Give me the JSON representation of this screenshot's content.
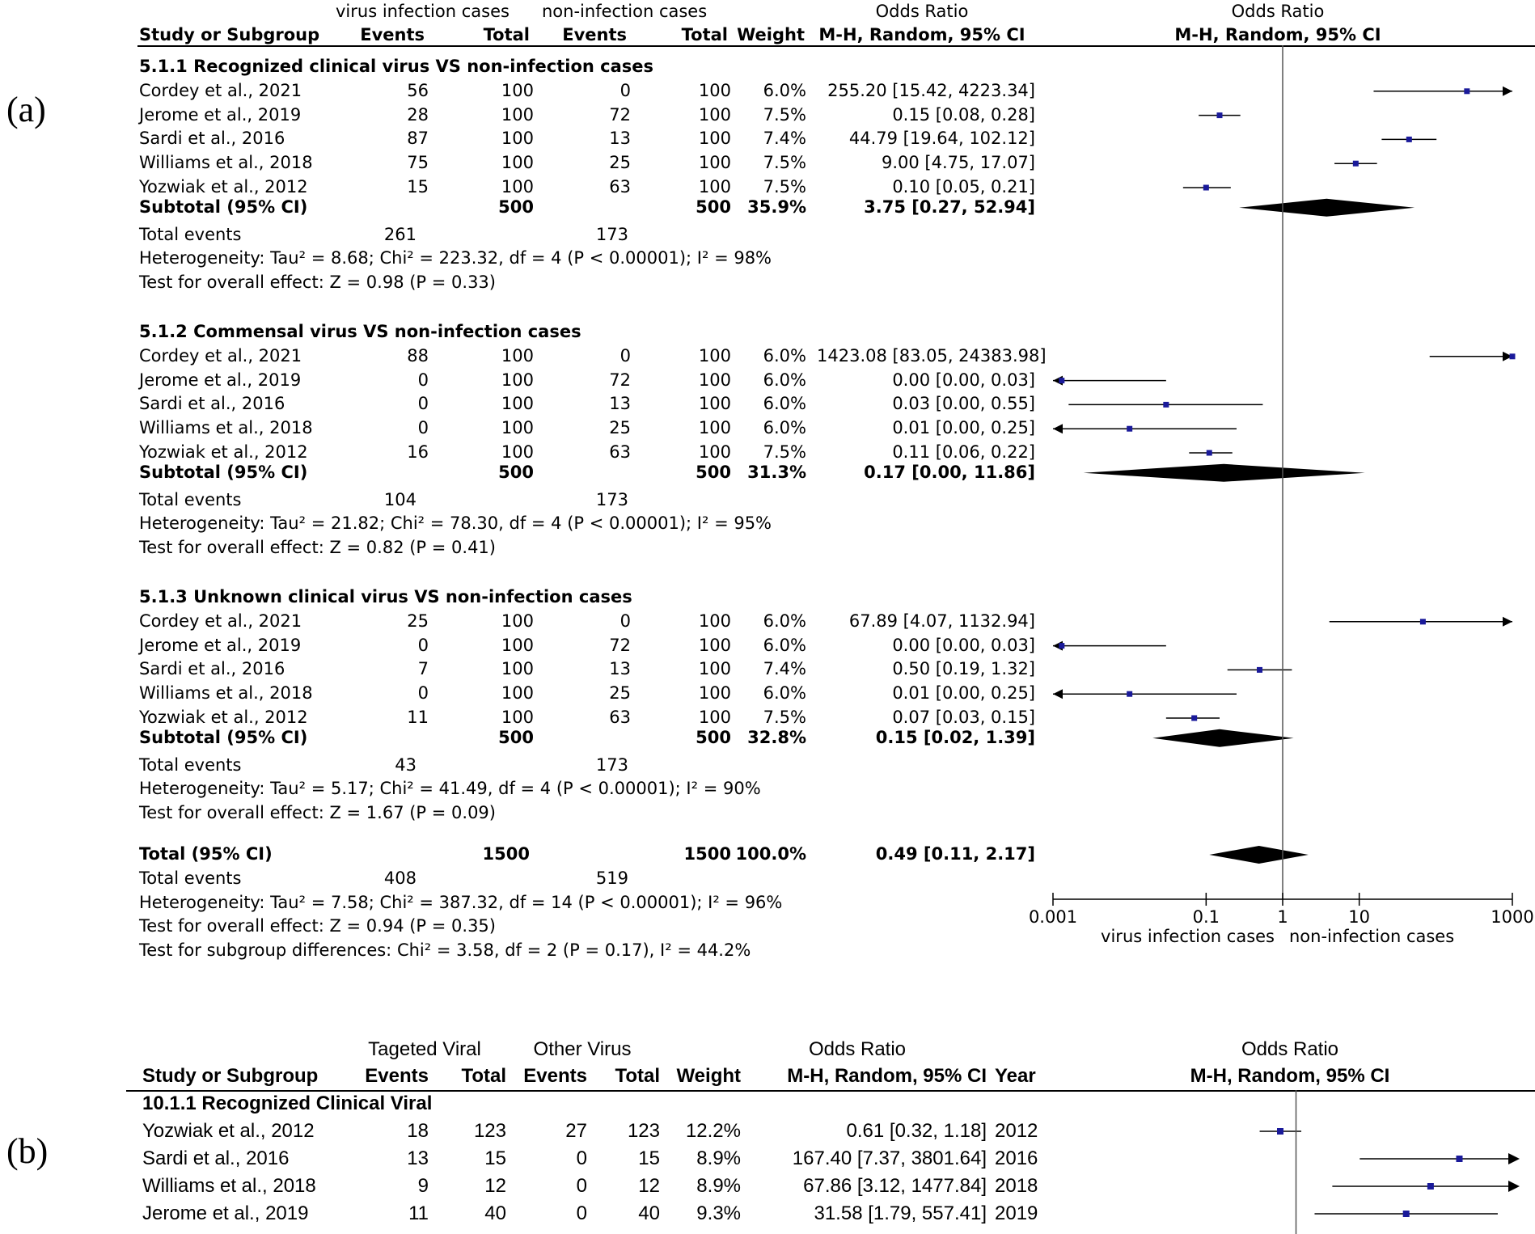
{
  "chart_data": [
    {
      "type": "forest",
      "panel": "(a)",
      "header": {
        "group1": "virus infection cases",
        "group2": "non-infection cases",
        "study_col": "Study or Subgroup",
        "events": "Events",
        "total": "Total",
        "weight": "Weight",
        "or_title": "Odds Ratio",
        "or_method": "M-H, Random, 95% CI",
        "plot_title": "Odds Ratio",
        "plot_method": "M-H, Random, 95% CI"
      },
      "subgroups": [
        {
          "title": "5.1.1 Recognized clinical virus VS non-infection cases",
          "studies": [
            {
              "study": "Cordey et al., 2021",
              "e1": "56",
              "n1": "100",
              "e2": "0",
              "n2": "100",
              "weight": "6.0%",
              "ci_text": "255.20 [15.42, 4223.34]",
              "or": 255.2,
              "lo": 15.42,
              "hi": 4223.34
            },
            {
              "study": "Jerome et al., 2019",
              "e1": "28",
              "n1": "100",
              "e2": "72",
              "n2": "100",
              "weight": "7.5%",
              "ci_text": "0.15 [0.08, 0.28]",
              "or": 0.15,
              "lo": 0.08,
              "hi": 0.28
            },
            {
              "study": "Sardi et al., 2016",
              "e1": "87",
              "n1": "100",
              "e2": "13",
              "n2": "100",
              "weight": "7.4%",
              "ci_text": "44.79 [19.64, 102.12]",
              "or": 44.79,
              "lo": 19.64,
              "hi": 102.12
            },
            {
              "study": "Williams et al., 2018",
              "e1": "75",
              "n1": "100",
              "e2": "25",
              "n2": "100",
              "weight": "7.5%",
              "ci_text": "9.00 [4.75, 17.07]",
              "or": 9.0,
              "lo": 4.75,
              "hi": 17.07
            },
            {
              "study": "Yozwiak et al., 2012",
              "e1": "15",
              "n1": "100",
              "e2": "63",
              "n2": "100",
              "weight": "7.5%",
              "ci_text": "0.10 [0.05, 0.21]",
              "or": 0.1,
              "lo": 0.05,
              "hi": 0.21
            }
          ],
          "subtotal": {
            "label": "Subtotal (95% CI)",
            "n1": "500",
            "n2": "500",
            "weight": "35.9%",
            "ci_text": "3.75 [0.27, 52.94]",
            "or": 3.75,
            "lo": 0.27,
            "hi": 52.94
          },
          "total_events": {
            "label": "Total events",
            "e1": "261",
            "e2": "173"
          },
          "heterogeneity": "Heterogeneity: Tau² = 8.68; Chi² = 223.32, df = 4 (P < 0.00001); I² = 98%",
          "overall": "Test for overall effect: Z = 0.98 (P = 0.33)"
        },
        {
          "title": "5.1.2 Commensal virus VS non-infection cases",
          "studies": [
            {
              "study": "Cordey et al., 2021",
              "e1": "88",
              "n1": "100",
              "e2": "0",
              "n2": "100",
              "weight": "6.0%",
              "ci_text": "1423.08 [83.05, 24383.98]",
              "or": 1423.08,
              "lo": 83.05,
              "hi": 24383.98
            },
            {
              "study": "Jerome et al., 2019",
              "e1": "0",
              "n1": "100",
              "e2": "72",
              "n2": "100",
              "weight": "6.0%",
              "ci_text": "0.00 [0.00, 0.03]",
              "or": 0.0013,
              "lo": 5e-05,
              "hi": 0.03
            },
            {
              "study": "Sardi et al., 2016",
              "e1": "0",
              "n1": "100",
              "e2": "13",
              "n2": "100",
              "weight": "6.0%",
              "ci_text": "0.03 [0.00, 0.55]",
              "or": 0.03,
              "lo": 0.0016,
              "hi": 0.55
            },
            {
              "study": "Williams et al., 2018",
              "e1": "0",
              "n1": "100",
              "e2": "25",
              "n2": "100",
              "weight": "6.0%",
              "ci_text": "0.01 [0.00, 0.25]",
              "or": 0.01,
              "lo": 0.0001,
              "hi": 0.25
            },
            {
              "study": "Yozwiak et al., 2012",
              "e1": "16",
              "n1": "100",
              "e2": "63",
              "n2": "100",
              "weight": "7.5%",
              "ci_text": "0.11 [0.06, 0.22]",
              "or": 0.11,
              "lo": 0.06,
              "hi": 0.22
            }
          ],
          "subtotal": {
            "label": "Subtotal (95% CI)",
            "n1": "500",
            "n2": "500",
            "weight": "31.3%",
            "ci_text": "0.17 [0.00, 11.86]",
            "or": 0.17,
            "lo": 0.0025,
            "hi": 11.86
          },
          "total_events": {
            "label": "Total events",
            "e1": "104",
            "e2": "173"
          },
          "heterogeneity": "Heterogeneity: Tau² = 21.82; Chi² = 78.30, df = 4 (P < 0.00001); I² = 95%",
          "overall": "Test for overall effect: Z = 0.82 (P = 0.41)"
        },
        {
          "title": "5.1.3 Unknown clinical virus VS non-infection cases",
          "studies": [
            {
              "study": "Cordey et al., 2021",
              "e1": "25",
              "n1": "100",
              "e2": "0",
              "n2": "100",
              "weight": "6.0%",
              "ci_text": "67.89 [4.07, 1132.94]",
              "or": 67.89,
              "lo": 4.07,
              "hi": 1132.94
            },
            {
              "study": "Jerome et al., 2019",
              "e1": "0",
              "n1": "100",
              "e2": "72",
              "n2": "100",
              "weight": "6.0%",
              "ci_text": "0.00 [0.00, 0.03]",
              "or": 0.0013,
              "lo": 5e-05,
              "hi": 0.03
            },
            {
              "study": "Sardi et al., 2016",
              "e1": "7",
              "n1": "100",
              "e2": "13",
              "n2": "100",
              "weight": "7.4%",
              "ci_text": "0.50 [0.19, 1.32]",
              "or": 0.5,
              "lo": 0.19,
              "hi": 1.32
            },
            {
              "study": "Williams et al., 2018",
              "e1": "0",
              "n1": "100",
              "e2": "25",
              "n2": "100",
              "weight": "6.0%",
              "ci_text": "0.01 [0.00, 0.25]",
              "or": 0.01,
              "lo": 0.0001,
              "hi": 0.25
            },
            {
              "study": "Yozwiak et al., 2012",
              "e1": "11",
              "n1": "100",
              "e2": "63",
              "n2": "100",
              "weight": "7.5%",
              "ci_text": "0.07 [0.03, 0.15]",
              "or": 0.07,
              "lo": 0.03,
              "hi": 0.15
            }
          ],
          "subtotal": {
            "label": "Subtotal (95% CI)",
            "n1": "500",
            "n2": "500",
            "weight": "32.8%",
            "ci_text": "0.15 [0.02, 1.39]",
            "or": 0.15,
            "lo": 0.02,
            "hi": 1.39
          },
          "total_events": {
            "label": "Total events",
            "e1": "43",
            "e2": "173"
          },
          "heterogeneity": "Heterogeneity: Tau² = 5.17; Chi² = 41.49, df = 4 (P < 0.00001); I² = 90%",
          "overall": "Test for overall effect: Z = 1.67 (P = 0.09)"
        }
      ],
      "total": {
        "label": "Total (95% CI)",
        "n1": "1500",
        "n2": "1500",
        "weight": "100.0%",
        "ci_text": "0.49 [0.11, 2.17]",
        "or": 0.49,
        "lo": 0.11,
        "hi": 2.17
      },
      "total_events": {
        "label": "Total events",
        "e1": "408",
        "e2": "519"
      },
      "heterogeneity": "Heterogeneity: Tau² = 7.58; Chi² = 387.32, df = 14 (P < 0.00001); I² = 96%",
      "overall": "Test for overall effect: Z = 0.94 (P = 0.35)",
      "subgroup_diff": "Test for subgroup differences: Chi² = 3.58, df = 2 (P = 0.17), I² = 44.2%",
      "axis": {
        "scale": "log",
        "xlim": [
          0.001,
          1000
        ],
        "ticks": [
          {
            "v": 0.001,
            "label": "0.001"
          },
          {
            "v": 0.1,
            "label": "0.1"
          },
          {
            "v": 1,
            "label": "1"
          },
          {
            "v": 10,
            "label": "10"
          },
          {
            "v": 1000,
            "label": "1000"
          }
        ],
        "left_label": "virus infection cases",
        "right_label": "non-infection cases"
      }
    },
    {
      "type": "forest",
      "panel": "(b)",
      "header": {
        "group1": "Tageted Viral",
        "group2": "Other Virus",
        "study_col": "Study or Subgroup",
        "events": "Events",
        "total": "Total",
        "weight": "Weight",
        "or_title": "Odds Ratio",
        "or_method": "M-H, Random, 95% CI",
        "year": "Year",
        "plot_title": "Odds Ratio",
        "plot_method": "M-H, Random, 95% CI"
      },
      "subgroups": [
        {
          "title": "10.1.1 Recognized Clinical Viral",
          "studies": [
            {
              "study": "Yozwiak et al., 2012",
              "e1": "18",
              "n1": "123",
              "e2": "27",
              "n2": "123",
              "weight": "12.2%",
              "ci_text": "0.61 [0.32, 1.18]",
              "year": "2012",
              "or": 0.61,
              "lo": 0.32,
              "hi": 1.18
            },
            {
              "study": "Sardi et al., 2016",
              "e1": "13",
              "n1": "15",
              "e2": "0",
              "n2": "15",
              "weight": "8.9%",
              "ci_text": "167.40 [7.37, 3801.64]",
              "year": "2016",
              "or": 167.4,
              "lo": 7.37,
              "hi": 3801.64
            },
            {
              "study": "Williams et al., 2018",
              "e1": "9",
              "n1": "12",
              "e2": "0",
              "n2": "12",
              "weight": "8.9%",
              "ci_text": "67.86 [3.12, 1477.84]",
              "year": "2018",
              "or": 67.86,
              "lo": 3.12,
              "hi": 1477.84
            },
            {
              "study": "Jerome et al., 2019",
              "e1": "11",
              "n1": "40",
              "e2": "0",
              "n2": "40",
              "weight": "9.3%",
              "ci_text": "31.58 [1.79, 557.41]",
              "year": "2019",
              "or": 31.58,
              "lo": 1.79,
              "hi": 557.41
            }
          ]
        }
      ]
    }
  ]
}
